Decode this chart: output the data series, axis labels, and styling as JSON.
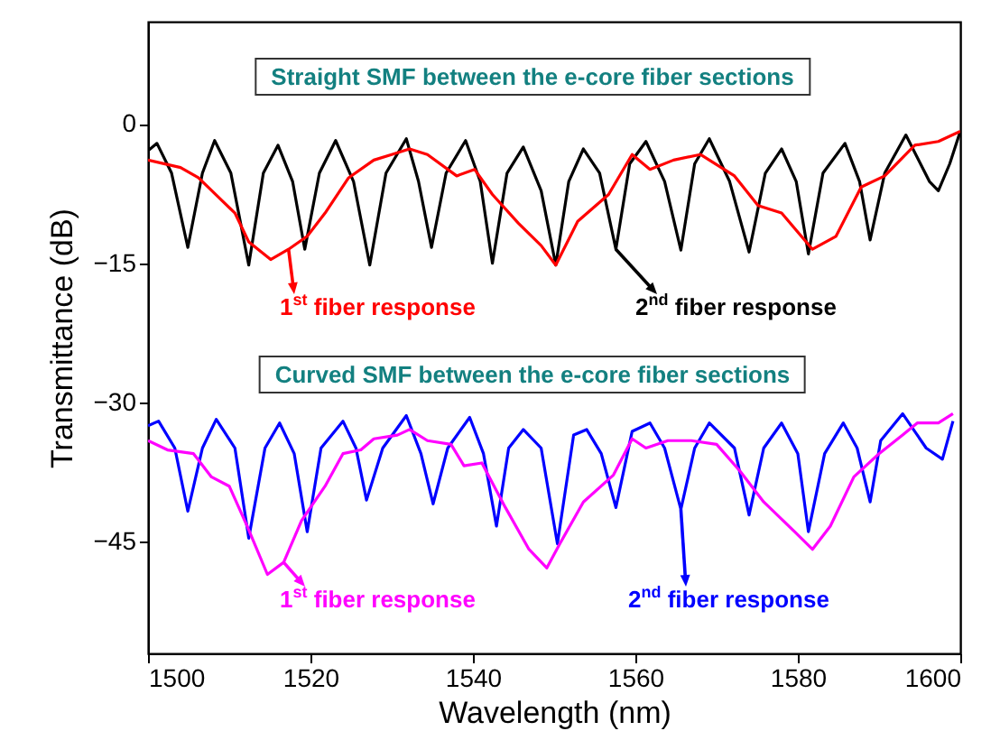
{
  "chart_data": {
    "type": "line",
    "xlabel": "Wavelength (nm)",
    "ylabel": "Transmittance (dB)",
    "xlim": [
      1500,
      1600
    ],
    "xticks": [
      1500,
      1520,
      1540,
      1560,
      1580,
      1600
    ],
    "ylim": [
      -57,
      11
    ],
    "yticks": [
      0,
      -15,
      -30,
      -45
    ],
    "grid": false,
    "annotations": [
      "Straight SMF between the e-core fiber sections",
      "Curved SMF between the e-core fiber sections",
      {
        "text": "1$^{st}$ fiber response",
        "x": 1517.3,
        "y": -13.5
      },
      {
        "text": "2$^{nd}$ fiber response",
        "x": 1557.6,
        "y": -13.5
      },
      {
        "text": "1$^{st}$ fiber response",
        "x": 1516.7,
        "y": -47.2
      },
      {
        "text": "2$^{nd}$ fiber response",
        "x": 1565.6,
        "y": -41.5
      }
    ],
    "series": [
      {
        "color": "#000000",
        "x": [
          1500,
          1501.1,
          1502.9,
          1504.9,
          1506.7,
          1508.2,
          1510.2,
          1512.4,
          1514.2,
          1516,
          1517.8,
          1519.3,
          1521.1,
          1523.1,
          1525.3,
          1527.3,
          1529.3,
          1531.8,
          1533.3,
          1534.9,
          1536.7,
          1539.1,
          1540.9,
          1542.4,
          1544.2,
          1546.2,
          1548.4,
          1550.2,
          1551.8,
          1553.6,
          1555.6,
          1557.6,
          1559.3,
          1561.3,
          1563.6,
          1565.6,
          1567.3,
          1569.1,
          1571.6,
          1574,
          1576,
          1578,
          1579.8,
          1581.3,
          1583.1,
          1585.8,
          1587.6,
          1588.9,
          1590.7,
          1593.3,
          1595.1,
          1596.2,
          1597.3,
          1598.7,
          1600
        ],
        "values": [
          -2.9,
          -2.1,
          -5.3,
          -13.3,
          -5.3,
          -1.8,
          -5.3,
          -15.2,
          -5.3,
          -2.3,
          -6.2,
          -13.5,
          -5.3,
          -1.8,
          -6.2,
          -15.2,
          -5.3,
          -1.6,
          -6.2,
          -13.3,
          -5.3,
          -1.8,
          -6.2,
          -15,
          -5.3,
          -2.5,
          -7.2,
          -15.2,
          -6.2,
          -2.7,
          -5.3,
          -13.5,
          -4.3,
          -1.9,
          -6.2,
          -13.6,
          -4.3,
          -1.6,
          -6.2,
          -13.8,
          -5.3,
          -2.7,
          -6.2,
          -14,
          -5.3,
          -2.1,
          -6.2,
          -12.5,
          -5.3,
          -1.2,
          -4.3,
          -6.2,
          -7.2,
          -4.3,
          -0.8
        ]
      },
      {
        "color": "#ff0000",
        "x": [
          1500,
          1504,
          1506.2,
          1510.7,
          1512.4,
          1515.1,
          1517.3,
          1519.6,
          1521.8,
          1524.7,
          1527.8,
          1530,
          1532.2,
          1534.4,
          1538,
          1540.2,
          1542.4,
          1545.6,
          1548.4,
          1550.2,
          1552.9,
          1556.7,
          1559.6,
          1561.8,
          1564.7,
          1568,
          1572.2,
          1575.1,
          1578,
          1581.8,
          1584.7,
          1587.8,
          1590.7,
          1594.4,
          1597.3,
          1600
        ],
        "values": [
          -3.9,
          -4.7,
          -5.8,
          -9.6,
          -12.7,
          -14.6,
          -13.5,
          -12.1,
          -9.6,
          -5.8,
          -3.9,
          -3.3,
          -2.7,
          -3.3,
          -5.6,
          -4.9,
          -7.6,
          -10.7,
          -13.1,
          -15.2,
          -10.5,
          -7.6,
          -3.3,
          -4.9,
          -3.9,
          -3.3,
          -5.6,
          -8.8,
          -9.6,
          -13.5,
          -12.1,
          -6.8,
          -5.6,
          -2.3,
          -1.9,
          -0.8
        ]
      },
      {
        "color": "#0000ff",
        "x": [
          1500,
          1501.3,
          1503.3,
          1504.9,
          1506.7,
          1508.4,
          1510.7,
          1512.4,
          1514.4,
          1516.2,
          1518,
          1519.6,
          1521.3,
          1524,
          1525.6,
          1526.9,
          1528.9,
          1531.8,
          1533.6,
          1535.1,
          1536.9,
          1539.6,
          1541.3,
          1542.9,
          1544.4,
          1546.2,
          1548.4,
          1550.4,
          1552.4,
          1554,
          1555.8,
          1557.6,
          1559.6,
          1561.8,
          1563.6,
          1565.6,
          1567.3,
          1569.1,
          1572.2,
          1574,
          1575.8,
          1578,
          1580,
          1581.3,
          1583.3,
          1585.6,
          1587.3,
          1588.9,
          1590.2,
          1592.9,
          1595.8,
          1597.8,
          1599.1
        ],
        "values": [
          -32.5,
          -32,
          -34.9,
          -41.7,
          -34.9,
          -31.8,
          -34.9,
          -44.6,
          -34.9,
          -32.2,
          -35.5,
          -43.9,
          -34.9,
          -32,
          -34.9,
          -40.5,
          -34.9,
          -31.4,
          -35.5,
          -40.9,
          -34.9,
          -31.6,
          -35.5,
          -43.3,
          -34.9,
          -32.9,
          -34.9,
          -45.2,
          -33.5,
          -32.9,
          -35.5,
          -41.3,
          -33.1,
          -32.2,
          -34.9,
          -41.5,
          -34.9,
          -32.2,
          -34.9,
          -42.1,
          -34.9,
          -32.2,
          -35.5,
          -43.9,
          -35.5,
          -32.2,
          -34.9,
          -40.7,
          -34.1,
          -31.2,
          -34.9,
          -36.1,
          -32
        ]
      },
      {
        "color": "#ff00ff",
        "x": [
          1500,
          1502.4,
          1505.6,
          1507.8,
          1510,
          1512.2,
          1514.7,
          1516.7,
          1518.9,
          1521.8,
          1524,
          1526.2,
          1527.8,
          1530.7,
          1532.2,
          1534.4,
          1537.3,
          1538.9,
          1541.1,
          1544,
          1546.9,
          1549.1,
          1550.7,
          1553.6,
          1557.3,
          1559.6,
          1561.3,
          1564,
          1566.9,
          1570,
          1572.9,
          1575.8,
          1579.6,
          1581.8,
          1584,
          1586.9,
          1590,
          1592.9,
          1594.7,
          1597.3,
          1599.1
        ],
        "values": [
          -34.1,
          -35.1,
          -35.5,
          -38,
          -39,
          -43.3,
          -48.5,
          -47.2,
          -42.7,
          -39,
          -35.5,
          -35.1,
          -33.9,
          -33.5,
          -32.9,
          -34.1,
          -34.5,
          -36.8,
          -36.5,
          -41.3,
          -45.8,
          -47.8,
          -45.2,
          -40.7,
          -37.8,
          -33.9,
          -34.9,
          -34.1,
          -34.1,
          -34.5,
          -37.4,
          -40.7,
          -43.9,
          -45.8,
          -43.3,
          -38,
          -35.5,
          -33.5,
          -32.2,
          -32.2,
          -31.2
        ]
      }
    ]
  }
}
